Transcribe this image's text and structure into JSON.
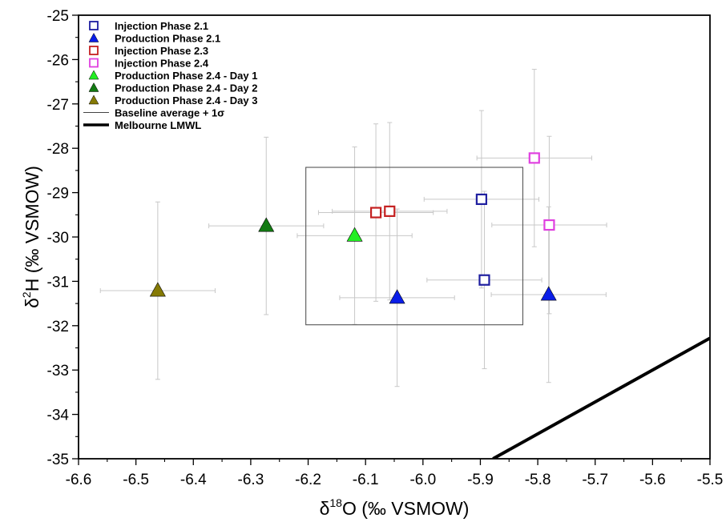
{
  "chart_data": {
    "type": "scatter",
    "xlabel": {
      "prefix": "δ",
      "sup": "18",
      "main": "O (‰ VSMOW)"
    },
    "ylabel": {
      "prefix": "δ",
      "sup": "2",
      "main": "H (‰ VSMOW)"
    },
    "xlim": [
      -6.6,
      -5.5
    ],
    "ylim": [
      -35,
      -25
    ],
    "x_ticks": [
      -6.6,
      -6.5,
      -6.4,
      -6.3,
      -6.2,
      -6.1,
      -6.0,
      -5.9,
      -5.8,
      -5.7,
      -5.6,
      -5.5
    ],
    "x_tick_labels": [
      "-6.6",
      "-6.5",
      "-6.4",
      "-6.3",
      "-6.2",
      "-6.1",
      "-6.0",
      "-5.9",
      "-5.8",
      "-5.7",
      "-5.6",
      "-5.5"
    ],
    "y_ticks": [
      -25,
      -26,
      -27,
      -28,
      -29,
      -30,
      -31,
      -32,
      -33,
      -34,
      -35
    ],
    "y_tick_labels": [
      "-25",
      "-26",
      "-27",
      "-28",
      "-29",
      "-30",
      "-31",
      "-32",
      "-33",
      "-34",
      "-35"
    ],
    "grid": false,
    "legend_position": "top-left",
    "series": [
      {
        "name": "Injection Phase 2.1",
        "marker": "square-open",
        "color": "#1f1fa0",
        "points": [
          {
            "x": -5.898,
            "y": -29.15,
            "xerr": 0.1,
            "yerr": 2.0
          },
          {
            "x": -5.893,
            "y": -30.97,
            "xerr": 0.1,
            "yerr": 2.0
          }
        ]
      },
      {
        "name": "Production Phase 2.1",
        "marker": "triangle",
        "color": "#0a1ee8",
        "points": [
          {
            "x": -6.045,
            "y": -31.37,
            "xerr": 0.1,
            "yerr": 2.0
          },
          {
            "x": -5.781,
            "y": -31.3,
            "xerr": 0.1,
            "yerr": 1.98
          }
        ]
      },
      {
        "name": "Injection Phase 2.3",
        "marker": "square-open",
        "color": "#c42020",
        "points": [
          {
            "x": -6.082,
            "y": -29.45,
            "xerr": 0.1,
            "yerr": 2.0
          },
          {
            "x": -6.058,
            "y": -29.42,
            "xerr": 0.1,
            "yerr": 2.0
          }
        ]
      },
      {
        "name": "Injection Phase 2.4",
        "marker": "square-open",
        "color": "#e040e0",
        "points": [
          {
            "x": -5.806,
            "y": -28.22,
            "xerr": 0.1,
            "yerr": 2.0
          },
          {
            "x": -5.78,
            "y": -29.73,
            "xerr": 0.1,
            "yerr": 2.0
          }
        ]
      },
      {
        "name": "Production Phase 2.4 - Day 1",
        "marker": "triangle",
        "color": "#22ee22",
        "points": [
          {
            "x": -6.119,
            "y": -29.97,
            "xerr": 0.1,
            "yerr": 2.0
          }
        ]
      },
      {
        "name": "Production Phase 2.4 - Day 2",
        "marker": "triangle",
        "color": "#137a13",
        "points": [
          {
            "x": -6.273,
            "y": -29.75,
            "xerr": 0.1,
            "yerr": 2.0
          }
        ]
      },
      {
        "name": "Production Phase 2.4 - Day 3",
        "marker": "triangle",
        "color": "#857a05",
        "points": [
          {
            "x": -6.462,
            "y": -31.21,
            "xerr": 0.1,
            "yerr": 2.0
          }
        ]
      }
    ],
    "baseline_box": {
      "name": "Baseline average + 1σ",
      "x": [
        -6.204,
        -5.826
      ],
      "y": [
        -31.98,
        -28.43
      ]
    },
    "lmwl": {
      "name": "Melbourne LMWL",
      "x": [
        -5.878,
        -5.5
      ],
      "y": [
        -35,
        -32.28
      ]
    }
  }
}
